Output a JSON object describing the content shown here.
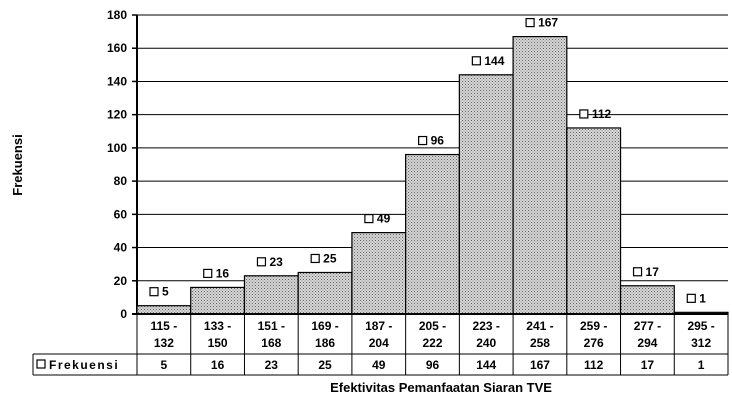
{
  "chart_data": {
    "type": "bar",
    "categories": [
      [
        "115 -",
        "132"
      ],
      [
        "133 -",
        "150"
      ],
      [
        "151 -",
        "168"
      ],
      [
        "169 -",
        "186"
      ],
      [
        "187 -",
        "204"
      ],
      [
        "205 -",
        "222"
      ],
      [
        "223 -",
        "240"
      ],
      [
        "241 -",
        "258"
      ],
      [
        "259 -",
        "276"
      ],
      [
        "277 -",
        "294"
      ],
      [
        "295 -",
        "312"
      ]
    ],
    "series": [
      {
        "name": "Frekuensi",
        "values": [
          5,
          16,
          23,
          25,
          49,
          96,
          144,
          167,
          112,
          17,
          1
        ]
      }
    ],
    "xlabel": "Efektivitas Pemanfaatan Siaran TVE",
    "ylabel": "Frekuensi",
    "ylim": [
      0,
      180
    ],
    "yticks": [
      0,
      20,
      40,
      60,
      80,
      100,
      120,
      140,
      160,
      180
    ],
    "grid": true,
    "data_table": true,
    "bar_fill": "#d6d6d6",
    "bar_stroke": "#000000"
  }
}
